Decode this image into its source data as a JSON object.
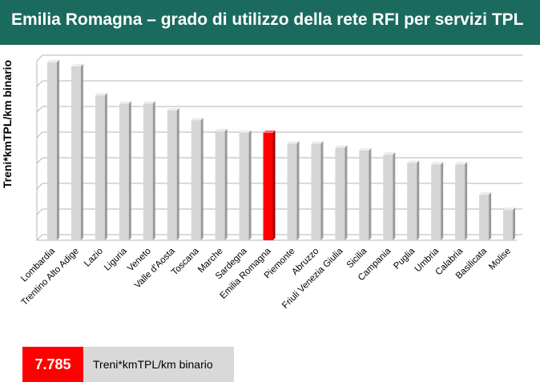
{
  "header": {
    "title": "Emilia Romagna – grado di utilizzo della rete RFI per servizi TPL"
  },
  "legend": {
    "value": "7.785",
    "unit_label": "Treni*kmTPL/km binario"
  },
  "colors": {
    "header_bg": "#1a6b5e",
    "bar": "#d6d6d6",
    "highlight": "#ff0000"
  },
  "chart_data": {
    "type": "bar",
    "title": "",
    "ylabel": "Treni*kmTPL/km binario",
    "xlabel": "",
    "ylim": [
      0,
      13
    ],
    "grid": true,
    "highlight_category": "Emilia Romagna",
    "categories": [
      "Lombardia",
      "Trentino Alto Adige",
      "Lazio",
      "Liguria",
      "Veneto",
      "Valle d'Aosta",
      "Toscana",
      "Marche",
      "Sardegna",
      "Emilia Romagna",
      "Piemonte",
      "Abruzzo",
      "Friuli Venezia Giulia",
      "Sicilia",
      "Campania",
      "Puglia",
      "Umbria",
      "Calabria",
      "Basilicata",
      "Molise"
    ],
    "values": [
      12.9,
      12.6,
      10.5,
      9.9,
      9.9,
      9.4,
      8.7,
      7.9,
      7.8,
      7.785,
      7.0,
      7.0,
      6.7,
      6.5,
      6.2,
      5.6,
      5.5,
      5.5,
      3.3,
      2.2
    ]
  }
}
